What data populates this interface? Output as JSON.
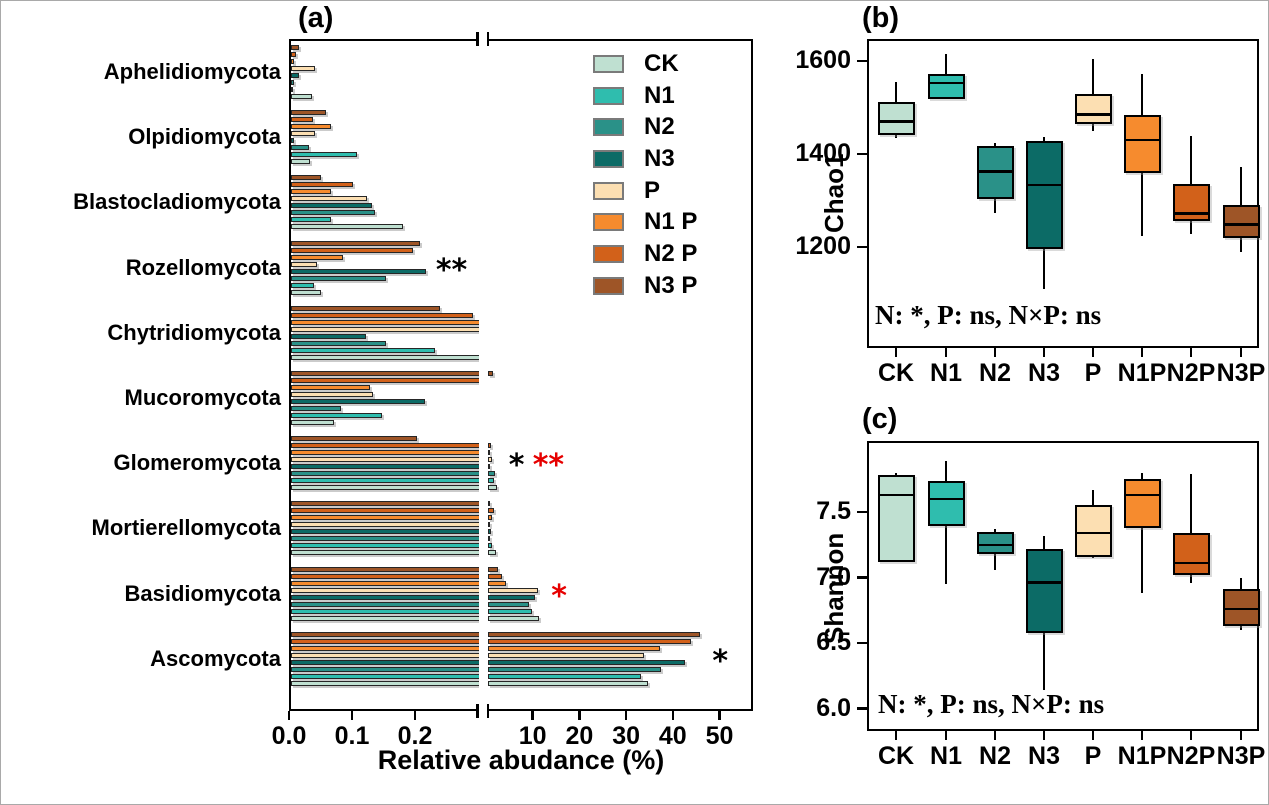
{
  "treatments": [
    {
      "key": "CK",
      "legend_label": "CK",
      "color": "#bfe0d1"
    },
    {
      "key": "N1",
      "legend_label": "N1",
      "color": "#2fbdae"
    },
    {
      "key": "N2",
      "legend_label": "N2",
      "color": "#2a9188"
    },
    {
      "key": "N3",
      "legend_label": "N3",
      "color": "#0c6b66"
    },
    {
      "key": "P",
      "legend_label": "P",
      "color": "#fcdfb2"
    },
    {
      "key": "N1P",
      "legend_label": "N1 P",
      "color": "#f68b2e"
    },
    {
      "key": "N2P",
      "legend_label": "N2 P",
      "color": "#d2611a"
    },
    {
      "key": "N3P",
      "legend_label": "N3 P",
      "color": "#9e5527"
    }
  ],
  "accent_colors": {
    "significance_red": "#e60000",
    "significance_black": "#000000"
  },
  "chart_data": [
    {
      "panel_label": "(a)",
      "type": "bar",
      "orientation": "horizontal",
      "xlabel": "Relative abudance (%)",
      "categories": [
        "Aphelidiomycota",
        "Olpidiomycota",
        "Blastocladiomycota",
        "Rozellomycota",
        "Chytridiomycota",
        "Mucoromycota",
        "Glomeromycota",
        "Mortierellomycota",
        "Basidiomycota",
        "Ascomycota"
      ],
      "x_axis": {
        "broken": true,
        "left_segment_range": [
          0,
          0.3
        ],
        "left_ticks": [
          {
            "value": 0,
            "label": "0.0"
          },
          {
            "value": 0.1,
            "label": "0.1"
          },
          {
            "value": 0.2,
            "label": "0.2"
          }
        ],
        "right_segment_range": [
          0,
          55
        ],
        "right_ticks": [
          {
            "value": 10,
            "label": "10"
          },
          {
            "value": 20,
            "label": "20"
          },
          {
            "value": 30,
            "label": "30"
          },
          {
            "value": 40,
            "label": "40"
          },
          {
            "value": 50,
            "label": "50"
          }
        ]
      },
      "series": [
        {
          "name": "CK",
          "values": [
            0.033,
            0.03,
            0.178,
            0.047,
            0.4,
            0.068,
            2.3,
            2.1,
            11.4,
            34.6
          ]
        },
        {
          "name": "N1",
          "values": [
            0.003,
            0.105,
            0.063,
            0.037,
            0.228,
            0.144,
            1.65,
            1.3,
            9.8,
            33.2
          ]
        },
        {
          "name": "N2",
          "values": [
            0.004,
            0.029,
            0.133,
            0.151,
            0.15,
            0.08,
            1.9,
            0.86,
            9.3,
            37.5
          ]
        },
        {
          "name": "N3",
          "values": [
            0.012,
            0.005,
            0.128,
            0.214,
            0.119,
            0.212,
            0.86,
            1.07,
            10.5,
            42.6
          ]
        },
        {
          "name": "P",
          "values": [
            0.038,
            0.038,
            0.12,
            0.042,
            0.42,
            0.13,
            1.2,
            0.7,
            11.2,
            33.9
          ]
        },
        {
          "name": "N1P",
          "values": [
            0.005,
            0.064,
            0.063,
            0.082,
            0.45,
            0.125,
            0.86,
            1.3,
            4.3,
            37.3
          ]
        },
        {
          "name": "N2P",
          "values": [
            0.008,
            0.035,
            0.098,
            0.194,
            0.289,
            0.45,
            1.07,
            1.65,
            3.4,
            44.0
          ]
        },
        {
          "name": "N3P",
          "values": [
            0.013,
            0.056,
            0.047,
            0.205,
            0.237,
            1.4,
            0.2,
            0.93,
            2.5,
            45.9
          ]
        }
      ],
      "bar_order_top_to_bottom": [
        "N3P",
        "N2P",
        "N1P",
        "P",
        "N3",
        "N2",
        "N1",
        "CK"
      ],
      "significance": [
        {
          "category": "Rozellomycota",
          "marks": [
            {
              "text": "**",
              "color": "#000000"
            }
          ]
        },
        {
          "category": "Glomeromycota",
          "marks": [
            {
              "text": "*",
              "color": "#000000"
            },
            {
              "text": "**",
              "color": "#e60000"
            }
          ]
        },
        {
          "category": "Basidiomycota",
          "marks": [
            {
              "text": "*",
              "color": "#e60000"
            }
          ]
        },
        {
          "category": "Ascomycota",
          "marks": [
            {
              "text": "*",
              "color": "#000000"
            }
          ]
        }
      ],
      "legend_position": "inside top right"
    },
    {
      "panel_label": "(b)",
      "type": "box",
      "ylabel": "Chao1",
      "annotation": "N: *, P: ns, N×P: ns",
      "categories": [
        "CK",
        "N1",
        "N2",
        "N3",
        "P",
        "N1P",
        "N2P",
        "N3P"
      ],
      "ylim": [
        1000,
        1650
      ],
      "yticks": [
        {
          "value": 1200,
          "label": "1200"
        },
        {
          "value": 1400,
          "label": "1400"
        },
        {
          "value": 1600,
          "label": "1600"
        }
      ],
      "boxes": [
        {
          "treatment": "CK",
          "low": 1435,
          "q1": 1440,
          "median": 1470,
          "q3": 1512,
          "high": 1555
        },
        {
          "treatment": "N1",
          "low": 1519,
          "q1": 1519,
          "median": 1553,
          "q3": 1571,
          "high": 1614
        },
        {
          "treatment": "N2",
          "low": 1273,
          "q1": 1303,
          "median": 1362,
          "q3": 1417,
          "high": 1423
        },
        {
          "treatment": "N3",
          "low": 1110,
          "q1": 1196,
          "median": 1333,
          "q3": 1428,
          "high": 1437
        },
        {
          "treatment": "P",
          "low": 1449,
          "q1": 1464,
          "median": 1485,
          "q3": 1530,
          "high": 1604
        },
        {
          "treatment": "N1P",
          "low": 1224,
          "q1": 1360,
          "median": 1430,
          "q3": 1483,
          "high": 1573
        },
        {
          "treatment": "N2P",
          "low": 1229,
          "q1": 1256,
          "median": 1272,
          "q3": 1335,
          "high": 1439
        },
        {
          "treatment": "N3P",
          "low": 1189,
          "q1": 1220,
          "median": 1248,
          "q3": 1290,
          "high": 1371
        }
      ]
    },
    {
      "panel_label": "(c)",
      "type": "box",
      "ylabel": "Shannon",
      "annotation": "N: *, P: ns,  N×P: ns",
      "categories": [
        "CK",
        "N1",
        "N2",
        "N3",
        "P",
        "N1P",
        "N2P",
        "N3P"
      ],
      "ylim": [
        5.9,
        8.0
      ],
      "yticks": [
        {
          "value": 6.0,
          "label": "6.0"
        },
        {
          "value": 6.5,
          "label": "6.5"
        },
        {
          "value": 7.0,
          "label": "7.0"
        },
        {
          "value": 7.5,
          "label": "7.5"
        }
      ],
      "boxes": [
        {
          "treatment": "CK",
          "low": 7.12,
          "q1": 7.12,
          "median": 7.63,
          "q3": 7.78,
          "high": 7.8
        },
        {
          "treatment": "N1",
          "low": 6.95,
          "q1": 7.39,
          "median": 7.6,
          "q3": 7.74,
          "high": 7.89
        },
        {
          "treatment": "N2",
          "low": 7.06,
          "q1": 7.18,
          "median": 7.25,
          "q3": 7.35,
          "high": 7.37
        },
        {
          "treatment": "N3",
          "low": 6.14,
          "q1": 6.58,
          "median": 6.96,
          "q3": 7.22,
          "high": 7.32
        },
        {
          "treatment": "P",
          "low": 7.15,
          "q1": 7.16,
          "median": 7.34,
          "q3": 7.55,
          "high": 7.67
        },
        {
          "treatment": "N1P",
          "low": 6.88,
          "q1": 7.38,
          "median": 7.63,
          "q3": 7.75,
          "high": 7.8
        },
        {
          "treatment": "N2P",
          "low": 6.96,
          "q1": 7.02,
          "median": 7.11,
          "q3": 7.34,
          "high": 7.79
        },
        {
          "treatment": "N3P",
          "low": 6.6,
          "q1": 6.63,
          "median": 6.76,
          "q3": 6.91,
          "high": 7.0
        }
      ]
    }
  ]
}
